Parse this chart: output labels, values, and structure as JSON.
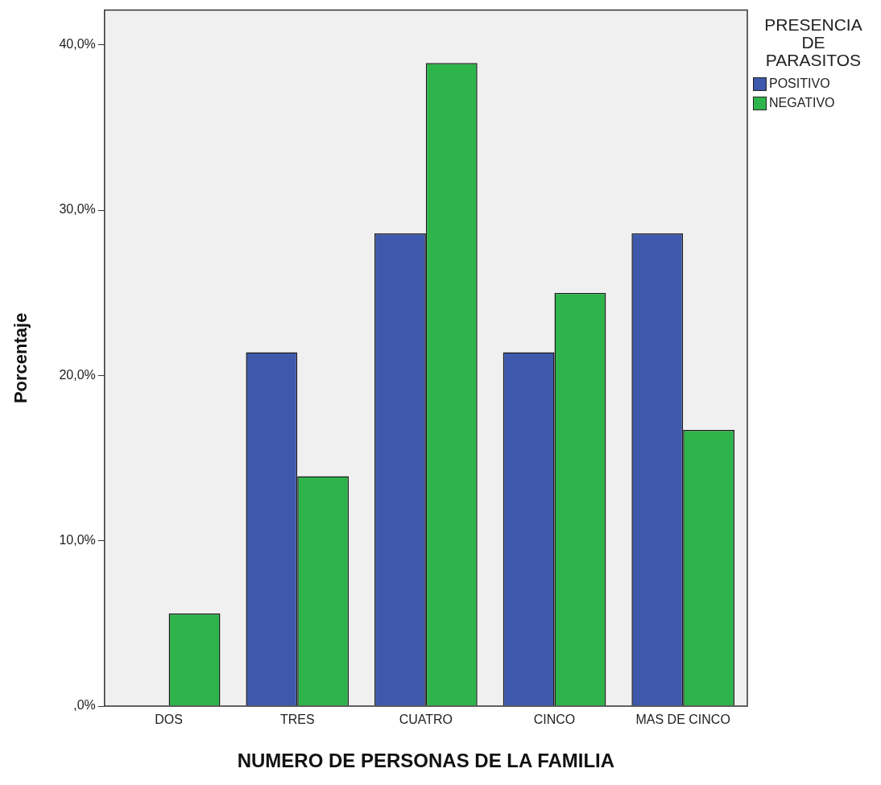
{
  "chart_data": {
    "type": "bar",
    "xlabel": "NUMERO DE PERSONAS DE LA FAMILIA",
    "ylabel": "Porcentaje",
    "legend_title": "PRESENCIA DE PARASITOS",
    "categories": [
      "DOS",
      "TRES",
      "CUATRO",
      "CINCO",
      "MAS DE CINCO"
    ],
    "series": [
      {
        "name": "POSITIVO",
        "color": "#3e58ac",
        "values": [
          0,
          21.4,
          28.6,
          21.4,
          28.6
        ]
      },
      {
        "name": "NEGATIVO",
        "color": "#2db54b",
        "values": [
          5.6,
          13.9,
          38.9,
          25.0,
          16.7
        ]
      }
    ],
    "ylim": [
      0,
      42.1
    ],
    "yticks": [
      {
        "value": 0,
        "label": ",0%"
      },
      {
        "value": 10,
        "label": "10,0%"
      },
      {
        "value": 20,
        "label": "20,0%"
      },
      {
        "value": 30,
        "label": "30,0%"
      },
      {
        "value": 40,
        "label": "40,0%"
      }
    ],
    "grid": false,
    "legend": "top right"
  }
}
